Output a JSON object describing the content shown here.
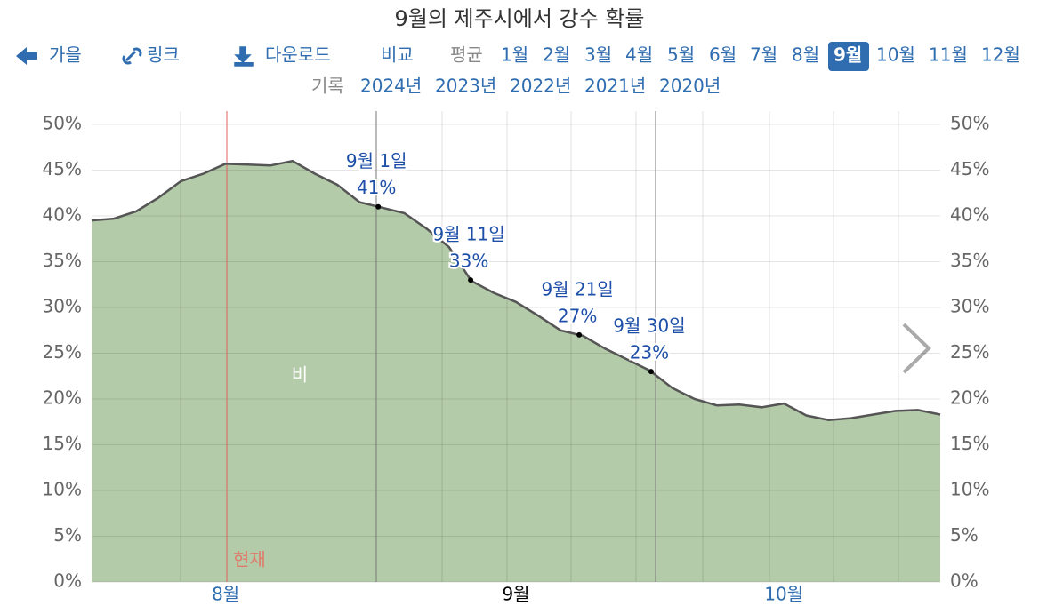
{
  "nav": {
    "back": "가을",
    "link": "링크",
    "download": "다운로드",
    "compare": "비교",
    "average": "평균",
    "months": [
      {
        "label": "1월"
      },
      {
        "label": "2월"
      },
      {
        "label": "3월"
      },
      {
        "label": "4월"
      },
      {
        "label": "5월"
      },
      {
        "label": "6월"
      },
      {
        "label": "7월"
      },
      {
        "label": "8월"
      },
      {
        "label": "9월",
        "selected": true
      },
      {
        "label": "10월"
      },
      {
        "label": "11월"
      },
      {
        "label": "12월"
      }
    ],
    "history": "기록",
    "years": [
      "2024년",
      "2023년",
      "2022년",
      "2021년",
      "2020년"
    ]
  },
  "chart_data": {
    "type": "area",
    "title": "9월의 제주시에서 강수 확률",
    "now_label": "현재",
    "categories": [
      null,
      null,
      null,
      null,
      null,
      null,
      "8월",
      null,
      null,
      null,
      null,
      null,
      null,
      null,
      null,
      null,
      null,
      null,
      null,
      "9월",
      null,
      null,
      null,
      null,
      null,
      null,
      null,
      null,
      null,
      null,
      null,
      "10월",
      null,
      null,
      null,
      null,
      null,
      null,
      null
    ],
    "series": [
      {
        "name": "비",
        "color": "#b4cba9",
        "values": [
          39.5,
          39.7,
          40.5,
          42,
          43.8,
          44.6,
          45.7,
          45.6,
          45.5,
          46,
          44.6,
          43.4,
          41.5,
          40.9,
          40.3,
          38.6,
          36.6,
          32.9,
          31.6,
          30.6,
          29.1,
          27.5,
          26.9,
          25.5,
          24.3,
          23.1,
          21.2,
          20,
          19.3,
          19.4,
          19.1,
          19.5,
          18.2,
          17.7,
          17.9,
          18.3,
          18.7,
          18.8,
          18.3
        ]
      }
    ],
    "annotations": [
      {
        "label": "9월 1일",
        "value": 41,
        "value_label": "41%"
      },
      {
        "label": "9월 11일",
        "value": 33,
        "value_label": "33%"
      },
      {
        "label": "9월 21일",
        "value": 27,
        "value_label": "27%"
      },
      {
        "label": "9월 30일",
        "value": 23,
        "value_label": "23%"
      }
    ],
    "ylim": [
      0,
      50
    ],
    "yticks": [
      {
        "value": 0,
        "label": "0%"
      },
      {
        "value": 5,
        "label": "5%"
      },
      {
        "value": 10,
        "label": "10%"
      },
      {
        "value": 15,
        "label": "15%"
      },
      {
        "value": 20,
        "label": "20%"
      },
      {
        "value": 25,
        "label": "25%"
      },
      {
        "value": 30,
        "label": "30%"
      },
      {
        "value": 35,
        "label": "35%"
      },
      {
        "value": 40,
        "label": "40%"
      },
      {
        "value": 45,
        "label": "45%"
      },
      {
        "value": 50,
        "label": "50%"
      }
    ],
    "grid": true
  }
}
